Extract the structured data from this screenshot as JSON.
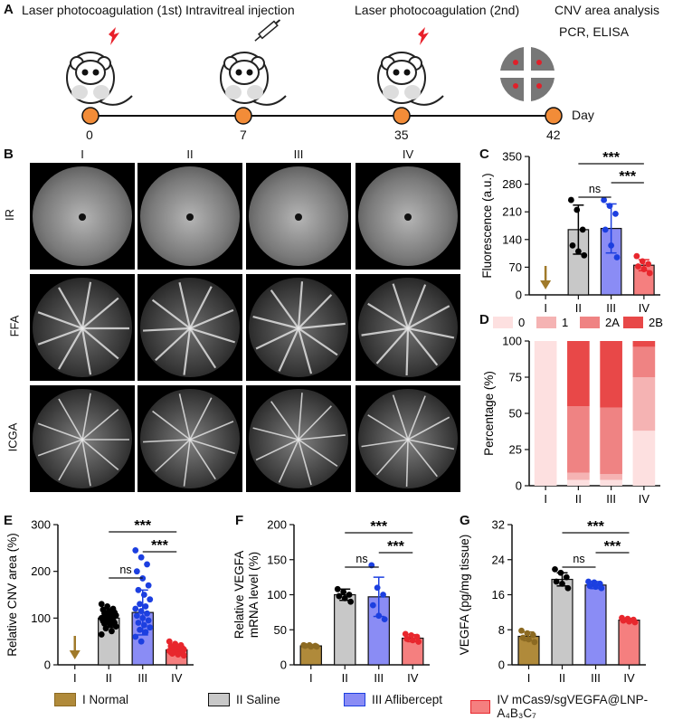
{
  "panel_labels": {
    "a": "A",
    "b": "B",
    "c": "C",
    "d": "D",
    "e": "E",
    "f": "F",
    "g": "G"
  },
  "timeline": {
    "steps": [
      {
        "label": "Laser photocoagulation (1st)",
        "day": "0"
      },
      {
        "label": "Intravitreal injection",
        "day": "7"
      },
      {
        "label": "Laser photocoagulation (2nd)",
        "day": "35"
      },
      {
        "label": "CNV area analysis",
        "day": "42"
      }
    ],
    "extra_label": "PCR,  ELISA",
    "axis_label": "Day",
    "colors": {
      "dot": "#f28c38",
      "bolt": "#e8202a"
    }
  },
  "images": {
    "columns": [
      "I",
      "II",
      "III",
      "IV"
    ],
    "rows": [
      "IR",
      "FFA",
      "ICGA"
    ]
  },
  "groups": [
    "I",
    "II",
    "III",
    "IV"
  ],
  "colors": {
    "I": "#b08a3a",
    "II": "#c8c8c8",
    "III": "#8a8cf5",
    "IV": "#f57f7f"
  },
  "dot_colors": {
    "I": "#8c6a22",
    "II": "#000000",
    "III": "#1c3fe0",
    "IV": "#e8272d"
  },
  "legend": [
    "I Normal",
    "II Saline",
    "III Aflibercept",
    "IV mCas9/sgVEGFA@LNP-A₄B₃C₇"
  ],
  "chart_data": [
    {
      "id": "C",
      "type": "bar",
      "categories": [
        "I",
        "II",
        "III",
        "IV"
      ],
      "ylabel": "Fluorescence (a.u.)",
      "ylim": [
        0,
        350
      ],
      "yticks": [
        0,
        70,
        140,
        210,
        280,
        350
      ],
      "values": [
        null,
        165,
        168,
        75
      ],
      "errors": [
        0,
        62,
        62,
        14
      ],
      "points": [
        [],
        [
          240,
          215,
          165,
          125,
          110,
          100
        ],
        [
          240,
          225,
          205,
          165,
          125,
          95
        ],
        [
          98,
          85,
          78,
          72,
          65,
          55
        ]
      ],
      "arrow_group": "I",
      "significance": [
        {
          "from": "II",
          "to": "IV",
          "label": "***"
        },
        {
          "from": "III",
          "to": "IV",
          "label": "***"
        },
        {
          "from": "II",
          "to": "III",
          "label": "ns"
        }
      ]
    },
    {
      "id": "D",
      "type": "stacked-bar",
      "categories": [
        "I",
        "II",
        "III",
        "IV"
      ],
      "ylabel": "Percentage (%)",
      "ylim": [
        0,
        100
      ],
      "yticks": [
        0,
        25,
        50,
        75,
        100
      ],
      "series": [
        {
          "name": "0",
          "color": "#fde0e0",
          "values": [
            100,
            4,
            4,
            38
          ]
        },
        {
          "name": "1",
          "color": "#f5b3b3",
          "values": [
            0,
            5,
            4,
            37
          ]
        },
        {
          "name": "2A",
          "color": "#ef8383",
          "values": [
            0,
            46,
            46,
            21
          ]
        },
        {
          "name": "2B",
          "color": "#e84848",
          "values": [
            0,
            45,
            46,
            4
          ]
        }
      ]
    },
    {
      "id": "E",
      "type": "bar",
      "categories": [
        "I",
        "II",
        "III",
        "IV"
      ],
      "ylabel": "Relative CNV area (%)",
      "ylim": [
        0,
        300
      ],
      "yticks": [
        0,
        100,
        200,
        300
      ],
      "values": [
        null,
        100,
        112,
        32
      ],
      "errors": [
        0,
        20,
        48,
        9
      ],
      "points": [
        [],
        [
          130,
          125,
          120,
          118,
          115,
          112,
          110,
          108,
          106,
          104,
          102,
          100,
          98,
          96,
          94,
          92,
          90,
          88,
          85,
          82,
          78,
          72,
          65
        ],
        [
          245,
          230,
          215,
          200,
          185,
          170,
          160,
          150,
          140,
          130,
          125,
          120,
          115,
          110,
          105,
          100,
          95,
          90,
          85,
          80,
          75,
          70,
          60,
          50
        ],
        [
          50,
          45,
          42,
          40,
          38,
          36,
          35,
          34,
          33,
          32,
          31,
          30,
          29,
          28,
          27,
          26,
          25,
          24,
          22,
          20
        ]
      ],
      "arrow_group": "I",
      "significance": [
        {
          "from": "II",
          "to": "IV",
          "label": "***"
        },
        {
          "from": "III",
          "to": "IV",
          "label": "***"
        },
        {
          "from": "II",
          "to": "III",
          "label": "ns"
        }
      ]
    },
    {
      "id": "F",
      "type": "bar",
      "categories": [
        "I",
        "II",
        "III",
        "IV"
      ],
      "ylabel": "Relative VEGFA\nmRNA level (%)",
      "ylim": [
        0,
        200
      ],
      "yticks": [
        0,
        50,
        100,
        150,
        200
      ],
      "values": [
        27,
        100,
        97,
        38
      ],
      "errors": [
        2,
        8,
        28,
        5
      ],
      "points": [
        [
          28,
          28,
          27,
          27,
          26,
          26
        ],
        [
          108,
          104,
          100,
          98,
          95,
          90
        ],
        [
          142,
          110,
          100,
          85,
          70,
          65
        ],
        [
          44,
          42,
          40,
          37,
          35,
          33
        ]
      ],
      "significance": [
        {
          "from": "II",
          "to": "IV",
          "label": "***"
        },
        {
          "from": "III",
          "to": "IV",
          "label": "***"
        },
        {
          "from": "II",
          "to": "III",
          "label": "ns"
        }
      ]
    },
    {
      "id": "G",
      "type": "bar",
      "categories": [
        "I",
        "II",
        "III",
        "IV"
      ],
      "ylabel": "VEGFA (pg/mg tissue)",
      "ylim": [
        0,
        32
      ],
      "yticks": [
        0,
        8,
        16,
        24,
        32
      ],
      "values": [
        6.5,
        19.5,
        18.2,
        10.2
      ],
      "errors": [
        1,
        1.5,
        0.8,
        0.4
      ],
      "points": [
        [
          7.8,
          7.2,
          6.8,
          6.2,
          5.8,
          5.2
        ],
        [
          21.8,
          21,
          20,
          19,
          18.5,
          17.5
        ],
        [
          19,
          18.8,
          18.5,
          18,
          17.8,
          17.5
        ],
        [
          10.7,
          10.5,
          10.3,
          10.1,
          9.9,
          9.7
        ]
      ],
      "significance": [
        {
          "from": "II",
          "to": "IV",
          "label": "***"
        },
        {
          "from": "III",
          "to": "IV",
          "label": "***"
        },
        {
          "from": "II",
          "to": "III",
          "label": "ns"
        }
      ]
    }
  ]
}
